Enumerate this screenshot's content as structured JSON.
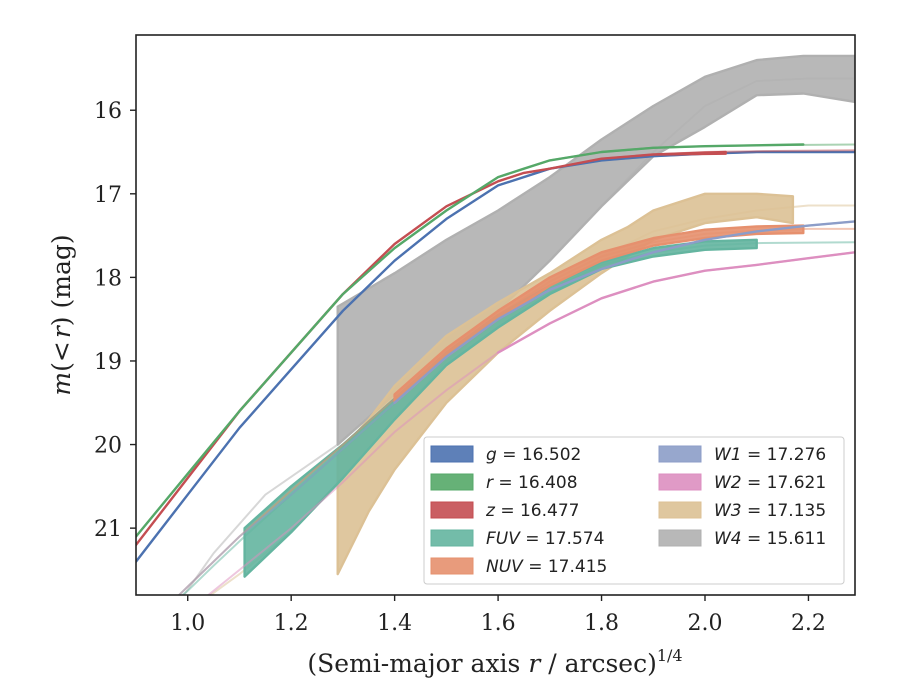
{
  "chart_data": {
    "type": "area",
    "xlabel": "(Semi-major axis r / arcsec)",
    "xlabel_parts": {
      "prefix": "(Semi-major axis ",
      "var": "r",
      "suffix": " / arcsec)",
      "exponent": "1/4"
    },
    "ylabel": "m(<r) (mag)",
    "ylabel_parts": {
      "m": "m",
      "open": "(",
      "lt": "<",
      "r": "r",
      "close": ")",
      "unit": " (mag)"
    },
    "xlim": [
      0.9,
      2.29
    ],
    "ylim": [
      21.8,
      15.1
    ],
    "y_inverted": true,
    "xticks": [
      "1.0",
      "1.2",
      "1.4",
      "1.6",
      "1.8",
      "2.0",
      "2.2"
    ],
    "xtick_values": [
      1.0,
      1.2,
      1.4,
      1.6,
      1.8,
      2.0,
      2.2
    ],
    "yticks": [
      "16",
      "17",
      "18",
      "19",
      "20",
      "21"
    ],
    "ytick_values": [
      16,
      17,
      18,
      19,
      20,
      21
    ],
    "grid": false,
    "legend_position": "lower-right",
    "legend_columns": 2,
    "series": [
      {
        "name": "g",
        "value": "16.502",
        "color": "#4c72b0",
        "faint": [
          [
            0.9,
            21.4
          ],
          [
            1.0,
            20.6
          ],
          [
            1.1,
            19.8
          ],
          [
            1.2,
            19.1
          ],
          [
            1.3,
            18.4
          ],
          [
            1.4,
            17.8
          ],
          [
            1.5,
            17.3
          ],
          [
            1.6,
            16.9
          ],
          [
            1.7,
            16.7
          ],
          [
            1.8,
            16.6
          ],
          [
            1.9,
            16.55
          ],
          [
            2.0,
            16.52
          ],
          [
            2.1,
            16.5
          ],
          [
            2.2,
            16.5
          ],
          [
            2.29,
            16.5
          ]
        ],
        "band": [
          [
            0.9,
            21.4,
            21.4
          ],
          [
            1.0,
            20.6,
            20.6
          ],
          [
            1.1,
            19.8,
            19.8
          ],
          [
            1.2,
            19.1,
            19.1
          ],
          [
            1.3,
            18.4,
            18.4
          ],
          [
            1.4,
            17.8,
            17.8
          ],
          [
            1.5,
            17.3,
            17.3
          ],
          [
            1.6,
            16.9,
            16.9
          ],
          [
            1.7,
            16.7,
            16.7
          ],
          [
            1.8,
            16.6,
            16.6
          ],
          [
            1.9,
            16.55,
            16.55
          ],
          [
            2.0,
            16.52,
            16.52
          ],
          [
            2.1,
            16.5,
            16.5
          ],
          [
            2.2,
            16.5,
            16.5
          ],
          [
            2.29,
            16.5,
            16.5
          ]
        ]
      },
      {
        "name": "r",
        "value": "16.408",
        "color": "#55a868",
        "faint": [
          [
            0.9,
            21.1
          ],
          [
            1.0,
            20.35
          ],
          [
            1.1,
            19.6
          ],
          [
            1.2,
            18.9
          ],
          [
            1.3,
            18.2
          ],
          [
            1.4,
            17.65
          ],
          [
            1.5,
            17.2
          ],
          [
            1.6,
            16.8
          ],
          [
            1.65,
            16.7
          ],
          [
            1.7,
            16.6
          ],
          [
            1.8,
            16.5
          ],
          [
            1.9,
            16.45
          ],
          [
            2.0,
            16.43
          ],
          [
            2.1,
            16.42
          ],
          [
            2.29,
            16.41
          ]
        ],
        "band": [
          [
            0.9,
            21.1,
            21.1
          ],
          [
            1.0,
            20.35,
            20.35
          ],
          [
            1.1,
            19.6,
            19.6
          ],
          [
            1.2,
            18.9,
            18.9
          ],
          [
            1.3,
            18.2,
            18.2
          ],
          [
            1.4,
            17.65,
            17.65
          ],
          [
            1.5,
            17.2,
            17.2
          ],
          [
            1.6,
            16.8,
            16.8
          ],
          [
            1.65,
            16.7,
            16.7
          ],
          [
            1.7,
            16.6,
            16.6
          ],
          [
            1.8,
            16.5,
            16.5
          ],
          [
            1.9,
            16.45,
            16.45
          ],
          [
            2.0,
            16.43,
            16.43
          ],
          [
            2.1,
            16.42,
            16.42
          ],
          [
            2.19,
            16.41,
            16.41
          ]
        ]
      },
      {
        "name": "z",
        "value": "16.477",
        "color": "#c44e52",
        "faint": [
          [
            0.9,
            21.2
          ],
          [
            1.0,
            20.4
          ],
          [
            1.1,
            19.6
          ],
          [
            1.2,
            18.9
          ],
          [
            1.3,
            18.2
          ],
          [
            1.4,
            17.6
          ],
          [
            1.5,
            17.15
          ],
          [
            1.6,
            16.85
          ],
          [
            1.65,
            16.75
          ],
          [
            1.7,
            16.7
          ],
          [
            1.8,
            16.58
          ],
          [
            1.9,
            16.53
          ],
          [
            2.0,
            16.5
          ],
          [
            2.1,
            16.49
          ],
          [
            2.29,
            16.48
          ]
        ],
        "band": [
          [
            0.9,
            21.2,
            21.2
          ],
          [
            1.0,
            20.4,
            20.4
          ],
          [
            1.1,
            19.6,
            19.6
          ],
          [
            1.2,
            18.9,
            18.9
          ],
          [
            1.3,
            18.2,
            18.2
          ],
          [
            1.4,
            17.6,
            17.6
          ],
          [
            1.5,
            17.15,
            17.15
          ],
          [
            1.6,
            16.85,
            16.85
          ],
          [
            1.65,
            16.75,
            16.75
          ],
          [
            1.7,
            16.7,
            16.7
          ],
          [
            1.8,
            16.58,
            16.58
          ],
          [
            1.9,
            16.53,
            16.53
          ],
          [
            2.04,
            16.5,
            16.52
          ]
        ]
      },
      {
        "name": "FUV",
        "value": "17.574",
        "color": "#64b5a0",
        "faint": [
          [
            0.95,
            22.0
          ],
          [
            1.0,
            21.75
          ],
          [
            1.05,
            21.45
          ],
          [
            1.11,
            21.1
          ],
          [
            1.2,
            20.6
          ],
          [
            1.3,
            20.05
          ],
          [
            1.4,
            19.5
          ],
          [
            1.5,
            18.95
          ],
          [
            1.6,
            18.5
          ],
          [
            1.7,
            18.15
          ],
          [
            1.8,
            17.85
          ],
          [
            1.9,
            17.7
          ],
          [
            2.0,
            17.62
          ],
          [
            2.1,
            17.59
          ],
          [
            2.29,
            17.58
          ]
        ],
        "band": [
          [
            1.11,
            21.0,
            21.58
          ],
          [
            1.2,
            20.5,
            21.05
          ],
          [
            1.3,
            20.0,
            20.4
          ],
          [
            1.4,
            19.45,
            19.7
          ],
          [
            1.5,
            18.9,
            19.05
          ],
          [
            1.6,
            18.45,
            18.6
          ],
          [
            1.7,
            18.1,
            18.2
          ],
          [
            1.8,
            17.82,
            17.9
          ],
          [
            1.9,
            17.65,
            17.75
          ],
          [
            2.0,
            17.57,
            17.67
          ],
          [
            2.1,
            17.55,
            17.65
          ]
        ]
      },
      {
        "name": "NUV",
        "value": "17.415",
        "color": "#e6906e",
        "faint": [
          [
            0.95,
            22.0
          ],
          [
            1.0,
            21.7
          ],
          [
            1.1,
            21.1
          ],
          [
            1.2,
            20.55
          ],
          [
            1.3,
            20.0
          ],
          [
            1.4,
            19.45
          ],
          [
            1.5,
            18.9
          ],
          [
            1.6,
            18.45
          ],
          [
            1.7,
            18.05
          ],
          [
            1.8,
            17.75
          ],
          [
            1.9,
            17.58
          ],
          [
            2.0,
            17.48
          ],
          [
            2.1,
            17.44
          ],
          [
            2.2,
            17.42
          ],
          [
            2.29,
            17.42
          ]
        ],
        "band": [
          [
            1.4,
            19.4,
            19.5
          ],
          [
            1.5,
            18.85,
            18.95
          ],
          [
            1.6,
            18.4,
            18.5
          ],
          [
            1.7,
            18.0,
            18.1
          ],
          [
            1.8,
            17.7,
            17.8
          ],
          [
            1.9,
            17.53,
            17.62
          ],
          [
            2.0,
            17.43,
            17.53
          ],
          [
            2.1,
            17.39,
            17.48
          ],
          [
            2.19,
            17.38,
            17.47
          ]
        ]
      },
      {
        "name": "W1",
        "value": "17.276",
        "color": "#8c9dc8",
        "faint": [
          [
            0.95,
            22.0
          ],
          [
            1.0,
            21.7
          ],
          [
            1.1,
            21.1
          ],
          [
            1.2,
            20.6
          ],
          [
            1.3,
            20.05
          ],
          [
            1.4,
            19.5
          ],
          [
            1.5,
            18.95
          ],
          [
            1.6,
            18.5
          ],
          [
            1.7,
            18.15
          ],
          [
            1.8,
            17.9
          ],
          [
            1.9,
            17.7
          ],
          [
            2.0,
            17.55
          ],
          [
            2.1,
            17.45
          ],
          [
            2.2,
            17.38
          ],
          [
            2.29,
            17.33
          ]
        ],
        "band": [
          [
            1.4,
            19.5,
            19.5
          ],
          [
            1.5,
            18.95,
            18.95
          ],
          [
            1.6,
            18.5,
            18.5
          ],
          [
            1.7,
            18.15,
            18.15
          ],
          [
            1.8,
            17.9,
            17.9
          ],
          [
            1.9,
            17.7,
            17.7
          ],
          [
            2.0,
            17.55,
            17.55
          ],
          [
            2.1,
            17.45,
            17.45
          ],
          [
            2.2,
            17.38,
            17.38
          ],
          [
            2.29,
            17.33,
            17.33
          ]
        ]
      },
      {
        "name": "W2",
        "value": "17.621",
        "color": "#dd8fc0",
        "faint": [
          [
            1.0,
            22.0
          ],
          [
            1.1,
            21.5
          ],
          [
            1.2,
            21.0
          ],
          [
            1.3,
            20.45
          ],
          [
            1.4,
            19.85
          ],
          [
            1.5,
            19.35
          ],
          [
            1.6,
            18.9
          ],
          [
            1.7,
            18.55
          ],
          [
            1.8,
            18.25
          ],
          [
            1.9,
            18.05
          ],
          [
            2.0,
            17.92
          ],
          [
            2.1,
            17.85
          ],
          [
            2.2,
            17.77
          ],
          [
            2.29,
            17.7
          ]
        ],
        "band": [
          [
            1.6,
            18.9,
            18.9
          ],
          [
            1.7,
            18.55,
            18.55
          ],
          [
            1.8,
            18.25,
            18.25
          ],
          [
            1.9,
            18.05,
            18.05
          ],
          [
            2.0,
            17.92,
            17.92
          ],
          [
            2.1,
            17.85,
            17.85
          ],
          [
            2.2,
            17.77,
            17.77
          ],
          [
            2.29,
            17.7,
            17.7
          ]
        ]
      },
      {
        "name": "W3",
        "value": "17.135",
        "color": "#dcc195",
        "faint": [
          [
            1.0,
            22.0
          ],
          [
            1.1,
            21.55
          ],
          [
            1.2,
            21.05
          ],
          [
            1.3,
            20.4
          ],
          [
            1.4,
            19.7
          ],
          [
            1.5,
            19.0
          ],
          [
            1.6,
            18.5
          ],
          [
            1.7,
            18.05
          ],
          [
            1.8,
            17.75
          ],
          [
            1.9,
            17.45
          ],
          [
            2.0,
            17.3
          ],
          [
            2.1,
            17.2
          ],
          [
            2.2,
            17.14
          ],
          [
            2.29,
            17.14
          ]
        ],
        "band": [
          [
            1.29,
            20.1,
            21.55
          ],
          [
            1.35,
            19.7,
            20.8
          ],
          [
            1.4,
            19.3,
            20.3
          ],
          [
            1.5,
            18.7,
            19.5
          ],
          [
            1.6,
            18.3,
            18.9
          ],
          [
            1.7,
            17.95,
            18.4
          ],
          [
            1.8,
            17.55,
            17.95
          ],
          [
            1.85,
            17.4,
            17.75
          ],
          [
            1.9,
            17.2,
            17.55
          ],
          [
            2.0,
            17.0,
            17.35
          ],
          [
            2.1,
            17.0,
            17.28
          ],
          [
            2.17,
            17.03,
            17.35
          ]
        ]
      },
      {
        "name": "W4",
        "value": "15.611",
        "color": "#b0b0b0",
        "faint": [
          [
            0.97,
            22.0
          ],
          [
            1.05,
            21.3
          ],
          [
            1.15,
            20.6
          ],
          [
            1.29,
            20.0
          ],
          [
            1.4,
            19.4
          ],
          [
            1.5,
            18.9
          ],
          [
            1.6,
            18.4
          ],
          [
            1.7,
            17.8
          ],
          [
            1.8,
            17.15
          ],
          [
            1.9,
            16.5
          ],
          [
            2.0,
            15.95
          ],
          [
            2.1,
            15.65
          ],
          [
            2.2,
            15.62
          ],
          [
            2.29,
            15.62
          ]
        ],
        "band": [
          [
            1.29,
            18.35,
            20.0
          ],
          [
            1.4,
            17.95,
            19.4
          ],
          [
            1.5,
            17.55,
            18.9
          ],
          [
            1.6,
            17.2,
            18.4
          ],
          [
            1.7,
            16.8,
            17.8
          ],
          [
            1.8,
            16.35,
            17.15
          ],
          [
            1.9,
            15.95,
            16.55
          ],
          [
            2.0,
            15.6,
            16.2
          ],
          [
            2.1,
            15.4,
            15.82
          ],
          [
            2.19,
            15.35,
            15.8
          ],
          [
            2.29,
            15.35,
            15.9
          ]
        ]
      }
    ]
  }
}
